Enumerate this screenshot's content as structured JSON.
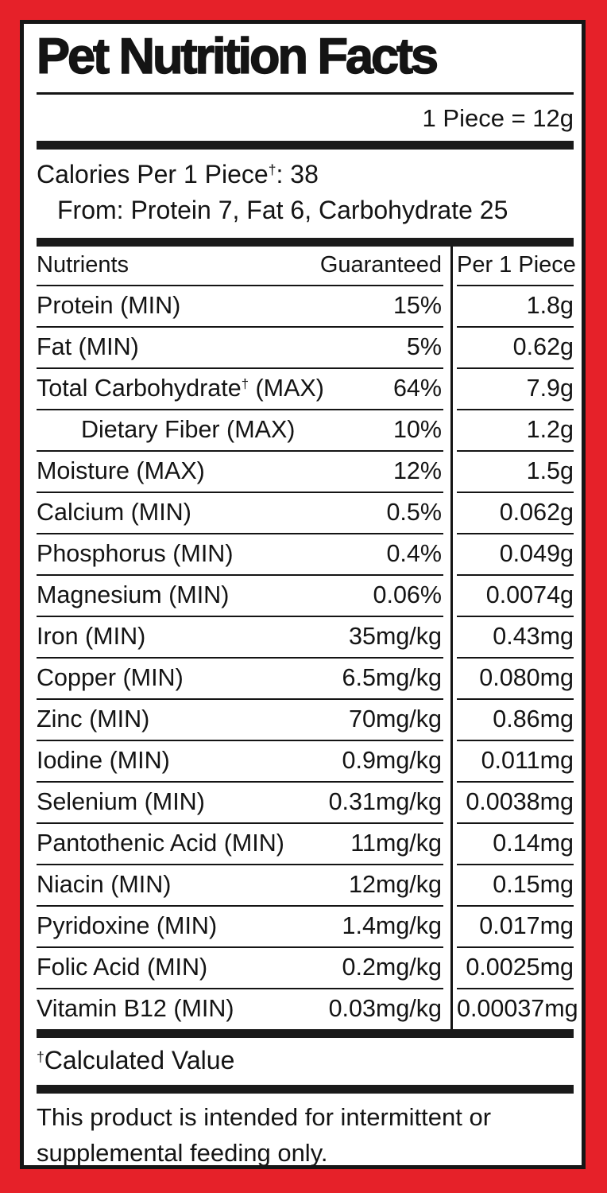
{
  "label": {
    "title": "Pet Nutrition Facts",
    "serving": "1 Piece = 12g",
    "calories": {
      "pre": "Calories Per 1 Piece",
      "dagger": "†",
      "post": ": 38"
    },
    "calories_from": "From: Protein 7, Fat 6, Carbohydrate 25",
    "footnote": {
      "dagger": "†",
      "text": "Calculated Value"
    },
    "statement": "This product is intended for intermittent or supplemental feeding only."
  },
  "table": {
    "headers": {
      "nutrients": "Nutrients",
      "guaranteed": "Guaranteed",
      "per_piece": "Per 1 Piece"
    },
    "rows": [
      {
        "name": "Protein (MIN)",
        "dagger": "",
        "post": "",
        "guaranteed": "15%",
        "per": "1.8g",
        "indent": false
      },
      {
        "name": "Fat (MIN)",
        "dagger": "",
        "post": "",
        "guaranteed": "5%",
        "per": "0.62g",
        "indent": false
      },
      {
        "name": "Total Carbohydrate",
        "dagger": "†",
        "post": " (MAX)",
        "guaranteed": "64%",
        "per": "7.9g",
        "indent": false
      },
      {
        "name": "Dietary Fiber (MAX)",
        "dagger": "",
        "post": "",
        "guaranteed": "10%",
        "per": "1.2g",
        "indent": true
      },
      {
        "name": "Moisture (MAX)",
        "dagger": "",
        "post": "",
        "guaranteed": "12%",
        "per": "1.5g",
        "indent": false
      },
      {
        "name": "Calcium (MIN)",
        "dagger": "",
        "post": "",
        "guaranteed": "0.5%",
        "per": "0.062g",
        "indent": false
      },
      {
        "name": "Phosphorus (MIN)",
        "dagger": "",
        "post": "",
        "guaranteed": "0.4%",
        "per": "0.049g",
        "indent": false
      },
      {
        "name": "Magnesium (MIN)",
        "dagger": "",
        "post": "",
        "guaranteed": "0.06%",
        "per": "0.0074g",
        "indent": false
      },
      {
        "name": "Iron (MIN)",
        "dagger": "",
        "post": "",
        "guaranteed": "35mg/kg",
        "per": "0.43mg",
        "indent": false
      },
      {
        "name": "Copper (MIN)",
        "dagger": "",
        "post": "",
        "guaranteed": "6.5mg/kg",
        "per": "0.080mg",
        "indent": false
      },
      {
        "name": "Zinc (MIN)",
        "dagger": "",
        "post": "",
        "guaranteed": "70mg/kg",
        "per": "0.86mg",
        "indent": false
      },
      {
        "name": "Iodine (MIN)",
        "dagger": "",
        "post": "",
        "guaranteed": "0.9mg/kg",
        "per": "0.011mg",
        "indent": false
      },
      {
        "name": "Selenium (MIN)",
        "dagger": "",
        "post": "",
        "guaranteed": "0.31mg/kg",
        "per": "0.0038mg",
        "indent": false
      },
      {
        "name": "Pantothenic Acid (MIN)",
        "dagger": "",
        "post": "",
        "guaranteed": "11mg/kg",
        "per": "0.14mg",
        "indent": false
      },
      {
        "name": "Niacin (MIN)",
        "dagger": "",
        "post": "",
        "guaranteed": "12mg/kg",
        "per": "0.15mg",
        "indent": false
      },
      {
        "name": "Pyridoxine (MIN)",
        "dagger": "",
        "post": "",
        "guaranteed": "1.4mg/kg",
        "per": "0.017mg",
        "indent": false
      },
      {
        "name": "Folic Acid (MIN)",
        "dagger": "",
        "post": "",
        "guaranteed": "0.2mg/kg",
        "per": "0.0025mg",
        "indent": false
      },
      {
        "name": "Vitamin B12 (MIN)",
        "dagger": "",
        "post": "",
        "guaranteed": "0.03mg/kg",
        "per": "0.00037mg",
        "indent": false
      }
    ]
  },
  "colors": {
    "frame_red": "#e62129",
    "ink_black": "#141414",
    "panel_white": "#ffffff"
  }
}
